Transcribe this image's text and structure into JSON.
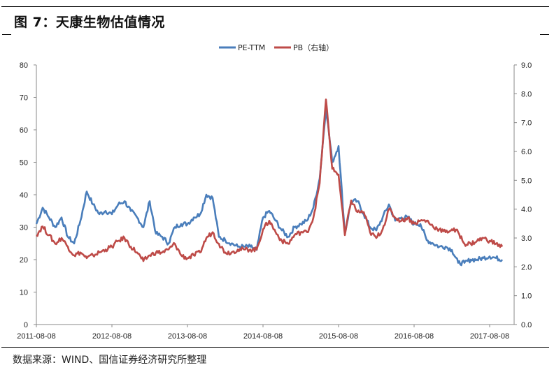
{
  "header": {
    "title": "图 7：天康生物估值情况"
  },
  "footer": {
    "source": "数据来源：WIND、国信证券经济研究所整理"
  },
  "legend": {
    "items": [
      {
        "label": "PE-TTM",
        "color": "#4a7ebb"
      },
      {
        "label": "PB（右轴）",
        "color": "#be4b48"
      }
    ]
  },
  "axes": {
    "left_ticks": [
      "0",
      "10",
      "20",
      "30",
      "40",
      "50",
      "60",
      "70",
      "80"
    ],
    "right_ticks": [
      "0.0",
      "1.0",
      "2.0",
      "3.0",
      "4.0",
      "5.0",
      "6.0",
      "7.0",
      "8.0",
      "9.0"
    ],
    "x_ticks": [
      "2011-08-08",
      "2012-08-08",
      "2013-08-08",
      "2014-08-08",
      "2015-08-08",
      "2016-08-08",
      "2017-08-08"
    ]
  },
  "chart_data": {
    "type": "line",
    "title": "天康生物估值情况",
    "xlabel": "",
    "ylabel": "PE-TTM",
    "y2label": "PB",
    "ylim": [
      0,
      80
    ],
    "y2lim": [
      0,
      9
    ],
    "grid": false,
    "legend_position": "top",
    "x_range": [
      "2011-08-08",
      "2017-10"
    ],
    "x_ticks": [
      "2011-08-08",
      "2012-08-08",
      "2013-08-08",
      "2014-08-08",
      "2015-08-08",
      "2016-08-08",
      "2017-08-08"
    ],
    "x": [
      "2011-08",
      "2011-09",
      "2011-10",
      "2011-11",
      "2011-12",
      "2012-01",
      "2012-02",
      "2012-03",
      "2012-04",
      "2012-05",
      "2012-06",
      "2012-07",
      "2012-08",
      "2012-09",
      "2012-10",
      "2012-11",
      "2012-12",
      "2013-01",
      "2013-02",
      "2013-03",
      "2013-04",
      "2013-05",
      "2013-06",
      "2013-07",
      "2013-08",
      "2013-09",
      "2013-10",
      "2013-11",
      "2013-12",
      "2014-01",
      "2014-02",
      "2014-03",
      "2014-04",
      "2014-05",
      "2014-06",
      "2014-07",
      "2014-08",
      "2014-09",
      "2014-10",
      "2014-11",
      "2014-12",
      "2015-01",
      "2015-02",
      "2015-03",
      "2015-04",
      "2015-05",
      "2015-06",
      "2015-07",
      "2015-08",
      "2015-09",
      "2015-10",
      "2015-11",
      "2015-12",
      "2016-01",
      "2016-02",
      "2016-03",
      "2016-04",
      "2016-05",
      "2016-06",
      "2016-07",
      "2016-08",
      "2016-09",
      "2016-10",
      "2016-11",
      "2016-12",
      "2017-01",
      "2017-02",
      "2017-03",
      "2017-04",
      "2017-05",
      "2017-06",
      "2017-07",
      "2017-08",
      "2017-09",
      "2017-10"
    ],
    "series": [
      {
        "name": "PE-TTM",
        "axis": "left",
        "color": "#4a7ebb",
        "values": [
          31,
          36,
          33,
          30,
          33,
          27,
          25,
          32,
          41,
          37,
          34,
          35,
          34,
          37,
          38,
          35,
          33,
          30,
          38,
          28,
          27,
          25,
          30,
          31,
          31,
          33,
          34,
          40,
          39,
          27,
          26,
          25,
          24,
          24,
          24,
          23,
          33,
          35,
          32,
          29,
          27,
          30,
          31,
          32,
          36,
          45,
          67,
          50,
          55,
          28,
          38,
          38,
          34,
          30,
          29,
          33,
          37,
          32,
          33,
          33,
          31,
          31,
          26,
          25,
          24,
          24,
          23,
          19,
          19,
          20,
          20,
          20.5,
          21,
          20.5,
          20
        ]
      },
      {
        "name": "PB（右轴）",
        "axis": "right",
        "color": "#be4b48",
        "values": [
          3.1,
          3.4,
          3.1,
          2.8,
          3.0,
          2.7,
          2.4,
          2.5,
          2.3,
          2.4,
          2.5,
          2.6,
          2.7,
          2.9,
          3.0,
          2.7,
          2.5,
          2.2,
          2.4,
          2.5,
          2.5,
          2.6,
          2.8,
          2.4,
          2.3,
          2.4,
          2.5,
          3.0,
          3.2,
          2.8,
          2.5,
          2.5,
          2.6,
          2.6,
          2.6,
          2.6,
          3.3,
          3.6,
          3.2,
          2.9,
          2.8,
          3.1,
          3.2,
          3.2,
          3.7,
          4.9,
          7.8,
          5.4,
          5.2,
          3.1,
          4.3,
          3.9,
          3.9,
          3.2,
          3.0,
          3.3,
          4.0,
          3.7,
          3.6,
          3.7,
          3.5,
          3.6,
          3.6,
          3.4,
          3.3,
          3.2,
          3.3,
          3.2,
          2.8,
          2.8,
          2.9,
          3.0,
          2.9,
          2.8,
          2.7
        ]
      }
    ]
  }
}
